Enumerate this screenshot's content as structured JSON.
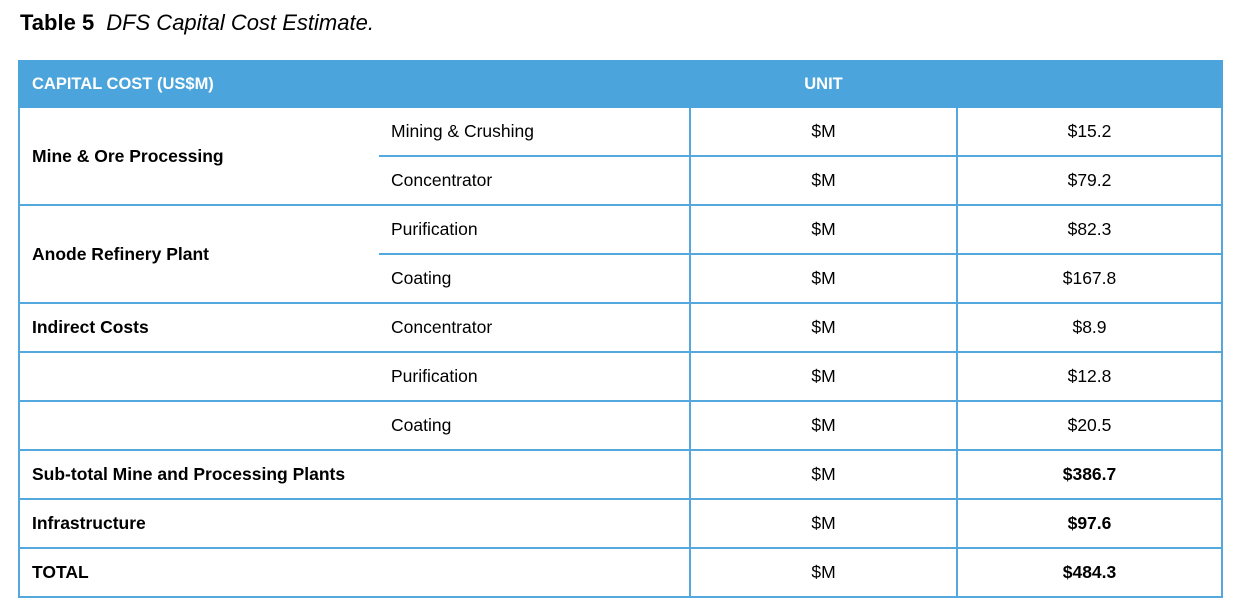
{
  "page": {
    "title_label": "Table 5",
    "title_caption": "DFS Capital Cost Estimate."
  },
  "colors": {
    "header_bg": "#4BA4DB",
    "cell_border": "#54A8DD",
    "header_text": "#FFFFFF",
    "body_text": "#000000",
    "page_bg": "#FFFFFF"
  },
  "table": {
    "header": {
      "capital_cost": "CAPITAL COST (US$M)",
      "unit": "UNIT",
      "value": ""
    },
    "rows": [
      {
        "group": "Mine & Ore Processing",
        "item": "Mining & Crushing",
        "unit": "$M",
        "value": "$15.2"
      },
      {
        "item": "Concentrator",
        "unit": "$M",
        "value": "$79.2"
      },
      {
        "group": "Anode Refinery Plant",
        "item": "Purification",
        "unit": "$M",
        "value": "$82.3"
      },
      {
        "item": "Coating",
        "unit": "$M",
        "value": "$167.8"
      },
      {
        "group": "Indirect Costs",
        "item": "Concentrator",
        "unit": "$M",
        "value": "$8.9"
      },
      {
        "group": "",
        "item": "Purification",
        "unit": "$M",
        "value": "$12.8"
      },
      {
        "group": "",
        "item": "Coating",
        "unit": "$M",
        "value": "$20.5"
      },
      {
        "label": "Sub-total Mine and Processing Plants",
        "unit": "$M",
        "value": "$386.7",
        "bold": true
      },
      {
        "label": "Infrastructure",
        "unit": "$M",
        "value": "$97.6",
        "bold": true
      },
      {
        "label": "TOTAL",
        "unit": "$M",
        "value": "$484.3",
        "bold": true
      }
    ]
  }
}
